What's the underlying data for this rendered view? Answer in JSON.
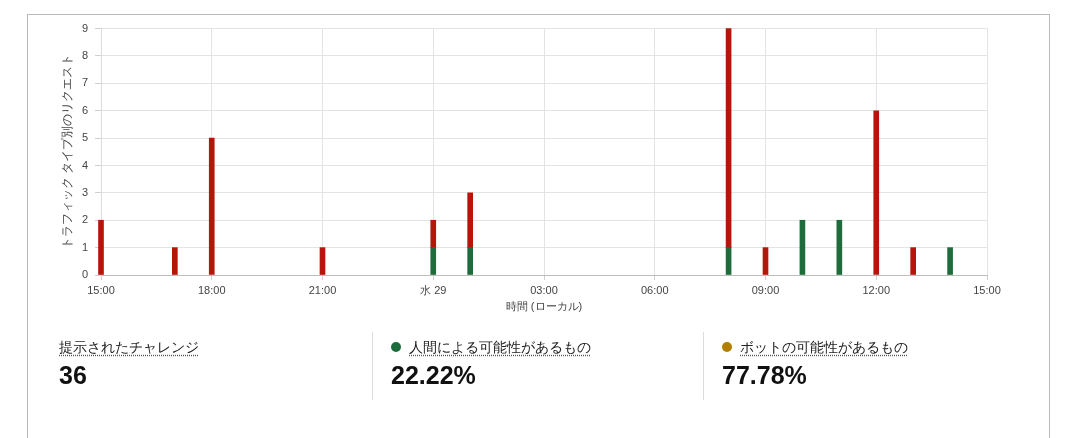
{
  "chart_data": [
    {
      "type": "bar",
      "stacked": true,
      "xlabel": "時間 (ローカル)",
      "ylabel": "トラフィック タイプ別のリクエスト",
      "categories": [
        "15:00",
        null,
        null,
        "18:00",
        null,
        null,
        "21:00",
        null,
        null,
        "水 29",
        null,
        null,
        "03:00",
        null,
        null,
        "06:00",
        null,
        null,
        "09:00",
        null,
        null,
        "12:00",
        null,
        null,
        "15:00"
      ],
      "series": [
        {
          "color": "#1f6b3c",
          "values": [
            null,
            null,
            null,
            null,
            null,
            null,
            null,
            null,
            null,
            1,
            1,
            null,
            null,
            null,
            null,
            null,
            null,
            1,
            null,
            2,
            2,
            null,
            null,
            1,
            null
          ]
        },
        {
          "color": "#b5150b",
          "values": [
            2,
            null,
            1,
            5,
            null,
            null,
            1,
            null,
            null,
            1,
            2,
            null,
            null,
            null,
            null,
            null,
            null,
            8,
            1,
            null,
            null,
            6,
            1,
            null,
            null
          ]
        }
      ],
      "ylim": [
        0,
        9
      ],
      "yticks": [
        0,
        1,
        2,
        3,
        4,
        5,
        6,
        7,
        8,
        9
      ],
      "grid": true
    },
    {
      "type": "other",
      "annotations": [
        "提示されたチャレンジ",
        "36",
        "人間による可能性があるもの",
        "22.22%",
        "ボットの可能性があるもの",
        "77.78%"
      ]
    }
  ]
}
